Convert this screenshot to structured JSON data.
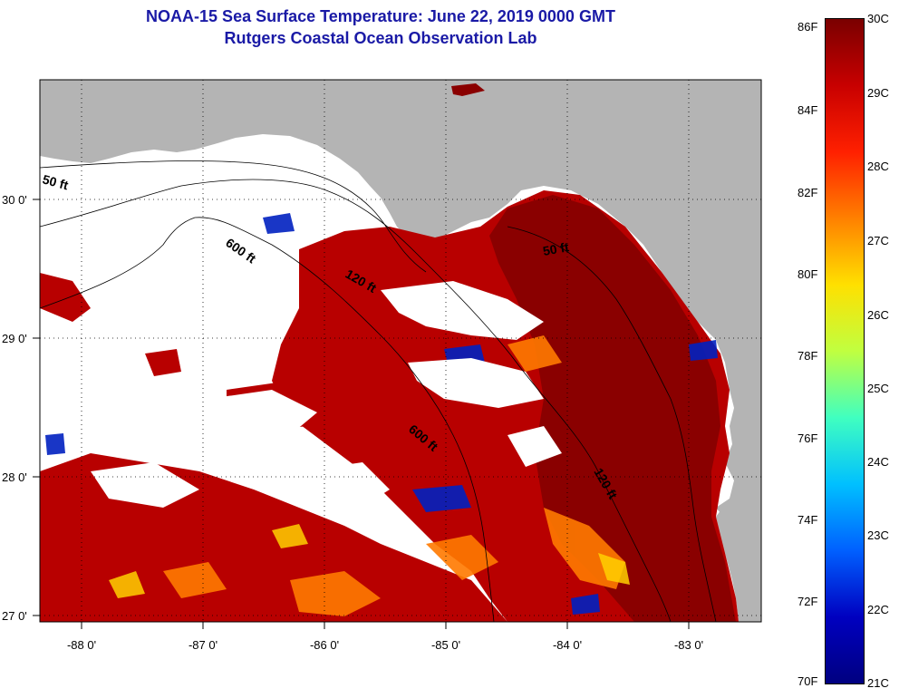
{
  "title": {
    "line1": "NOAA-15 Sea Surface Temperature:  June 22, 2019 0000 GMT",
    "line2": "Rutgers Coastal Ocean Observation Lab"
  },
  "map": {
    "lon_range": [
      -88.3,
      -82.5
    ],
    "lat_range": [
      26.9,
      30.8
    ],
    "lon_ticks": [
      "-88 0'",
      "-87 0'",
      "-86 0'",
      "-85 0'",
      "-84 0'",
      "-83 0'"
    ],
    "lat_ticks": [
      "30 0'",
      "29 0'",
      "28 0'",
      "27 0'"
    ],
    "land_color": "#b4b4b4",
    "cloud_color": "#ffffff",
    "isobath_labels": [
      "50 ft",
      "600 ft",
      "120 ft",
      "50 ft",
      "600 ft",
      "120 ft"
    ]
  },
  "colorbar": {
    "fahrenheit": [
      "86F",
      "84F",
      "82F",
      "80F",
      "78F",
      "76F",
      "74F",
      "72F",
      "70F"
    ],
    "celsius": [
      "30C",
      "29C",
      "28C",
      "27C",
      "26C",
      "25C",
      "24C",
      "23C",
      "22C",
      "21C"
    ],
    "colors": [
      "#7a0000",
      "#c80000",
      "#ff2000",
      "#ff8000",
      "#ffe000",
      "#c0ff40",
      "#40ffc0",
      "#00c0ff",
      "#0060ff",
      "#0000c0",
      "#000080"
    ]
  }
}
